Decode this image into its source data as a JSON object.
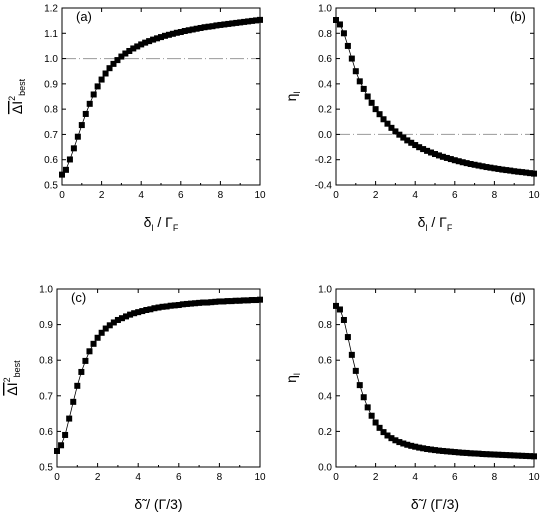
{
  "chart_data": [
    {
      "type": "scatter",
      "panel_label": "(a)",
      "xlabel": "δl / ΓF",
      "xlabel_parts": {
        "main": "δ",
        "sub1": "l",
        "sep": " / Γ",
        "sub2": "F"
      },
      "ylabel_parts": {
        "main": "ΔI",
        "sup": "2",
        "sub": "best"
      },
      "xlim": [
        0,
        10
      ],
      "ylim": [
        0.5,
        1.2
      ],
      "xticks": [
        0,
        2,
        4,
        6,
        8,
        10
      ],
      "yticks": [
        0.5,
        0.6,
        0.7,
        0.8,
        0.9,
        1.0,
        1.1,
        1.2
      ],
      "ytick_labels": [
        "0.5",
        "0.6",
        "0.7",
        "0.8",
        "0.9",
        "1.0",
        "1.1",
        "1.2"
      ],
      "reference_line": 1.0,
      "x": [
        0.0,
        0.2,
        0.4,
        0.6,
        0.8,
        1.0,
        1.2,
        1.4,
        1.6,
        1.8,
        2.0,
        2.2,
        2.4,
        2.6,
        2.8,
        3.0,
        3.2,
        3.4,
        3.6,
        3.8,
        4.0,
        4.2,
        4.4,
        4.6,
        4.8,
        5.0,
        5.2,
        5.4,
        5.6,
        5.8,
        6.0,
        6.2,
        6.4,
        6.6,
        6.8,
        7.0,
        7.2,
        7.4,
        7.6,
        7.8,
        8.0,
        8.2,
        8.4,
        8.6,
        8.8,
        9.0,
        9.2,
        9.4,
        9.6,
        9.8,
        10.0
      ],
      "y": [
        0.541,
        0.56,
        0.601,
        0.645,
        0.691,
        0.737,
        0.781,
        0.821,
        0.858,
        0.89,
        0.917,
        0.941,
        0.962,
        0.979,
        0.994,
        1.008,
        1.02,
        1.03,
        1.04,
        1.048,
        1.056,
        1.063,
        1.069,
        1.075,
        1.08,
        1.085,
        1.09,
        1.094,
        1.098,
        1.102,
        1.105,
        1.109,
        1.112,
        1.115,
        1.118,
        1.121,
        1.124,
        1.126,
        1.128,
        1.131,
        1.133,
        1.135,
        1.137,
        1.139,
        1.141,
        1.143,
        1.145,
        1.147,
        1.149,
        1.151,
        1.153
      ]
    },
    {
      "type": "scatter",
      "panel_label": "(b)",
      "xlabel": "δl / ΓF",
      "xlabel_parts": {
        "main": "δ",
        "sub1": "l",
        "sep": " / Γ",
        "sub2": "F"
      },
      "ylabel_parts": {
        "main": "η",
        "sub": "l"
      },
      "xlim": [
        0,
        10
      ],
      "ylim": [
        -0.4,
        1.0
      ],
      "xticks": [
        0,
        2,
        4,
        6,
        8,
        10
      ],
      "yticks": [
        -0.4,
        -0.2,
        0.0,
        0.2,
        0.4,
        0.6,
        0.8,
        1.0
      ],
      "ytick_labels": [
        "-0.4",
        "-0.2",
        "0.0",
        "0.2",
        "0.4",
        "0.6",
        "0.8",
        "1.0"
      ],
      "reference_line": 0.0,
      "x": [
        0.0,
        0.2,
        0.4,
        0.6,
        0.8,
        1.0,
        1.2,
        1.4,
        1.6,
        1.8,
        2.0,
        2.2,
        2.4,
        2.6,
        2.8,
        3.0,
        3.2,
        3.4,
        3.6,
        3.8,
        4.0,
        4.2,
        4.4,
        4.6,
        4.8,
        5.0,
        5.2,
        5.4,
        5.6,
        5.8,
        6.0,
        6.2,
        6.4,
        6.6,
        6.8,
        7.0,
        7.2,
        7.4,
        7.6,
        7.8,
        8.0,
        8.2,
        8.4,
        8.6,
        8.8,
        9.0,
        9.2,
        9.4,
        9.6,
        9.8,
        10.0
      ],
      "y": [
        0.905,
        0.87,
        0.8,
        0.7,
        0.6,
        0.5,
        0.42,
        0.36,
        0.3,
        0.25,
        0.2,
        0.16,
        0.12,
        0.085,
        0.052,
        0.024,
        -0.002,
        -0.025,
        -0.047,
        -0.066,
        -0.084,
        -0.101,
        -0.116,
        -0.13,
        -0.143,
        -0.155,
        -0.166,
        -0.177,
        -0.186,
        -0.195,
        -0.204,
        -0.212,
        -0.22,
        -0.227,
        -0.234,
        -0.24,
        -0.246,
        -0.252,
        -0.258,
        -0.263,
        -0.268,
        -0.273,
        -0.278,
        -0.282,
        -0.286,
        -0.291,
        -0.295,
        -0.298,
        -0.302,
        -0.306,
        -0.31
      ]
    },
    {
      "type": "scatter",
      "panel_label": "(c)",
      "xlabel": "δ̃ / (Γ/3)",
      "xlabel_parts": {
        "main": "δ̃",
        "rest": " / (Γ/3)"
      },
      "ylabel_parts": {
        "main": "ΔI",
        "sup": "2",
        "sub": "best"
      },
      "xlim": [
        0,
        10
      ],
      "ylim": [
        0.5,
        1.0
      ],
      "xticks": [
        0,
        2,
        4,
        6,
        8,
        10
      ],
      "yticks": [
        0.5,
        0.6,
        0.7,
        0.8,
        0.9,
        1.0
      ],
      "ytick_labels": [
        "0.5",
        "0.6",
        "0.7",
        "0.8",
        "0.9",
        "1.0"
      ],
      "reference_line": 1.0,
      "x": [
        0.0,
        0.2,
        0.4,
        0.6,
        0.8,
        1.0,
        1.2,
        1.4,
        1.6,
        1.8,
        2.0,
        2.2,
        2.4,
        2.6,
        2.8,
        3.0,
        3.2,
        3.4,
        3.6,
        3.8,
        4.0,
        4.2,
        4.4,
        4.6,
        4.8,
        5.0,
        5.2,
        5.4,
        5.6,
        5.8,
        6.0,
        6.2,
        6.4,
        6.6,
        6.8,
        7.0,
        7.2,
        7.4,
        7.6,
        7.8,
        8.0,
        8.2,
        8.4,
        8.6,
        8.8,
        9.0,
        9.2,
        9.4,
        9.6,
        9.8,
        10.0
      ],
      "y": [
        0.545,
        0.561,
        0.59,
        0.636,
        0.683,
        0.728,
        0.767,
        0.798,
        0.825,
        0.846,
        0.863,
        0.877,
        0.889,
        0.898,
        0.906,
        0.913,
        0.918,
        0.923,
        0.928,
        0.932,
        0.935,
        0.938,
        0.941,
        0.943,
        0.946,
        0.948,
        0.95,
        0.951,
        0.953,
        0.954,
        0.955,
        0.957,
        0.958,
        0.959,
        0.96,
        0.961,
        0.962,
        0.962,
        0.963,
        0.964,
        0.965,
        0.965,
        0.966,
        0.966,
        0.967,
        0.967,
        0.968,
        0.968,
        0.969,
        0.969,
        0.97
      ]
    },
    {
      "type": "scatter",
      "panel_label": "(d)",
      "xlabel": "δ̃ / (Γ/3)",
      "xlabel_parts": {
        "main": "δ̃",
        "rest": " / (Γ/3)"
      },
      "ylabel_parts": {
        "main": "η",
        "sub": "l"
      },
      "xlim": [
        0,
        10
      ],
      "ylim": [
        0.0,
        1.0
      ],
      "xticks": [
        0,
        2,
        4,
        6,
        8,
        10
      ],
      "yticks": [
        0.0,
        0.2,
        0.4,
        0.6,
        0.8,
        1.0
      ],
      "ytick_labels": [
        "0.0",
        "0.2",
        "0.4",
        "0.6",
        "0.8",
        "1.0"
      ],
      "x": [
        0.0,
        0.2,
        0.4,
        0.6,
        0.8,
        1.0,
        1.2,
        1.4,
        1.6,
        1.8,
        2.0,
        2.2,
        2.4,
        2.6,
        2.8,
        3.0,
        3.2,
        3.4,
        3.6,
        3.8,
        4.0,
        4.2,
        4.4,
        4.6,
        4.8,
        5.0,
        5.2,
        5.4,
        5.6,
        5.8,
        6.0,
        6.2,
        6.4,
        6.6,
        6.8,
        7.0,
        7.2,
        7.4,
        7.6,
        7.8,
        8.0,
        8.2,
        8.4,
        8.6,
        8.8,
        9.0,
        9.2,
        9.4,
        9.6,
        9.8,
        10.0
      ],
      "y": [
        0.905,
        0.885,
        0.826,
        0.73,
        0.63,
        0.54,
        0.46,
        0.392,
        0.335,
        0.288,
        0.25,
        0.22,
        0.196,
        0.177,
        0.162,
        0.15,
        0.14,
        0.132,
        0.125,
        0.119,
        0.114,
        0.109,
        0.105,
        0.101,
        0.098,
        0.095,
        0.092,
        0.09,
        0.088,
        0.086,
        0.084,
        0.082,
        0.08,
        0.079,
        0.077,
        0.076,
        0.075,
        0.073,
        0.072,
        0.071,
        0.07,
        0.069,
        0.068,
        0.067,
        0.066,
        0.065,
        0.064,
        0.063,
        0.062,
        0.061,
        0.06
      ]
    }
  ]
}
